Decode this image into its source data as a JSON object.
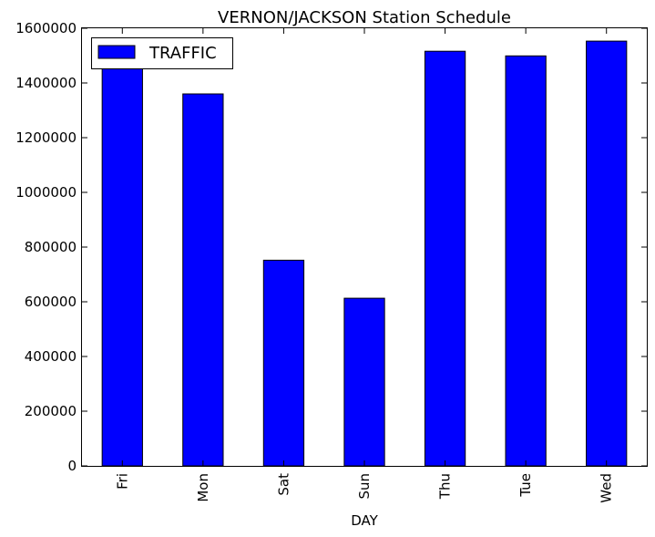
{
  "chart_data": {
    "type": "bar",
    "title": "VERNON/JACKSON Station Schedule",
    "xlabel": "DAY",
    "ylabel": "",
    "categories": [
      "Fri",
      "Mon",
      "Sat",
      "Sun",
      "Thu",
      "Tue",
      "Wed"
    ],
    "series": [
      {
        "name": "TRAFFIC",
        "color": "#0000ff",
        "values": [
          1455000,
          1360000,
          752000,
          613000,
          1516000,
          1499000,
          1553000
        ]
      }
    ],
    "ylim": [
      0,
      1600000
    ],
    "yticks": [
      0,
      200000,
      400000,
      600000,
      800000,
      1000000,
      1200000,
      1400000,
      1600000
    ],
    "ytick_labels": [
      "0",
      "200000",
      "400000",
      "600000",
      "800000",
      "1000000",
      "1200000",
      "1400000",
      "1600000"
    ],
    "grid": false,
    "legend": "top-left"
  }
}
